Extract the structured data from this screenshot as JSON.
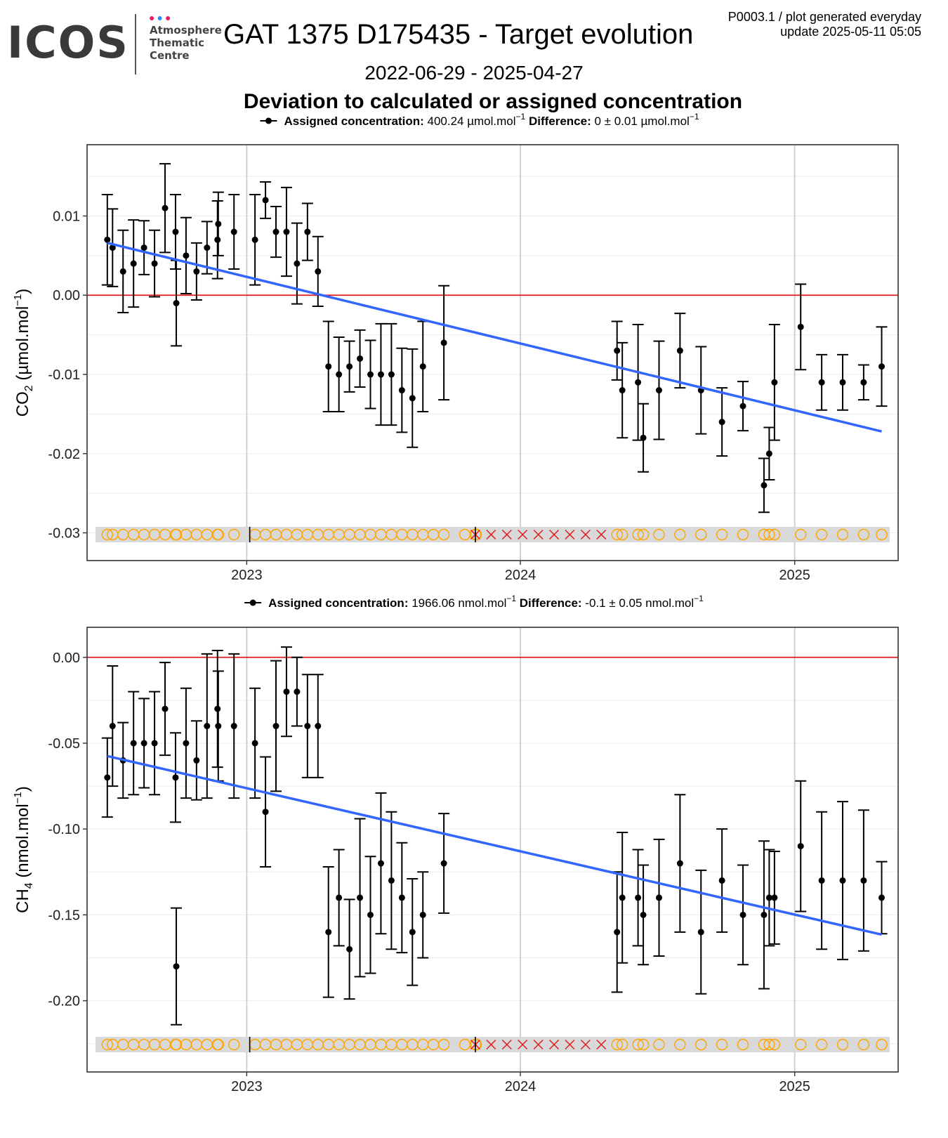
{
  "logo": {
    "text": "ICOS",
    "dots": [
      "#e91e63",
      "#2196f3",
      "#e91e63"
    ],
    "sub": [
      "Atmosphere",
      "Thematic",
      "Centre"
    ]
  },
  "header": {
    "title": "GAT 1375 D175435 - Target evolution",
    "meta_line1": "P0003.1 / plot generated everyday",
    "meta_line2": "update  2025-05-11 05:05",
    "date_range": "2022-06-29 - 2025-04-27",
    "subtitle": "Deviation to calculated or assigned concentration"
  },
  "colors": {
    "points": "#000000",
    "zero_line": "#e31a1c",
    "trend": "#3366ff",
    "flag_circle": "#ffa500",
    "flag_cross": "#e31a1c",
    "flag_band": "#d9d9d9",
    "grid": "#ebebeb",
    "year_grid": "#cccccc"
  },
  "chart_data": [
    {
      "type": "scatter",
      "panel": "co2",
      "legend": {
        "label1": "Assigned concentration:",
        "value1": "400.24 µmol.mol",
        "sup1": "−1",
        "label2": "Difference:",
        "value2": "0 ± 0.01 µmol.mol",
        "sup2": "−1"
      },
      "ylabel": {
        "pre": "CO",
        "sub": "2",
        "mid": " (µmol.mol",
        "sup": "−1",
        "post": ")"
      },
      "ylim": [
        -0.0335,
        0.019
      ],
      "yticks": [
        {
          "v": 0.01,
          "label": "0.01"
        },
        {
          "v": 0.0,
          "label": "0.00"
        },
        {
          "v": -0.01,
          "label": "-0.01"
        },
        {
          "v": -0.02,
          "label": "-0.02"
        },
        {
          "v": -0.03,
          "label": "-0.03"
        }
      ],
      "xticks": [
        "2023",
        "2024",
        "2025"
      ],
      "points": [
        {
          "x": "2022-06-29",
          "y": 0.007,
          "e": 0.0057
        },
        {
          "x": "2022-07-06",
          "y": 0.006,
          "e": 0.0049
        },
        {
          "x": "2022-07-20",
          "y": 0.003,
          "e": 0.0052
        },
        {
          "x": "2022-08-03",
          "y": 0.004,
          "e": 0.0055
        },
        {
          "x": "2022-08-17",
          "y": 0.006,
          "e": 0.0034
        },
        {
          "x": "2022-08-31",
          "y": 0.004,
          "e": 0.0042
        },
        {
          "x": "2022-09-14",
          "y": 0.011,
          "e": 0.0056
        },
        {
          "x": "2022-09-28",
          "y": 0.008,
          "e": 0.0047
        },
        {
          "x": "2022-09-29",
          "y": -0.001,
          "e": 0.0054
        },
        {
          "x": "2022-10-12",
          "y": 0.005,
          "e": 0.0048
        },
        {
          "x": "2022-10-26",
          "y": 0.003,
          "e": 0.0036
        },
        {
          "x": "2022-11-09",
          "y": 0.006,
          "e": 0.0033
        },
        {
          "x": "2022-11-23",
          "y": 0.007,
          "e": 0.0049
        },
        {
          "x": "2022-11-24",
          "y": 0.009,
          "e": 0.004
        },
        {
          "x": "2022-12-15",
          "y": 0.008,
          "e": 0.0047
        },
        {
          "x": "2023-01-12",
          "y": 0.007,
          "e": 0.0057
        },
        {
          "x": "2023-01-26",
          "y": 0.012,
          "e": 0.0023
        },
        {
          "x": "2023-02-09",
          "y": 0.008,
          "e": 0.0032
        },
        {
          "x": "2023-02-23",
          "y": 0.008,
          "e": 0.0056
        },
        {
          "x": "2023-03-09",
          "y": 0.004,
          "e": 0.0051
        },
        {
          "x": "2023-03-23",
          "y": 0.008,
          "e": 0.0036
        },
        {
          "x": "2023-04-06",
          "y": 0.003,
          "e": 0.0044
        },
        {
          "x": "2023-04-20",
          "y": -0.009,
          "e": 0.0057
        },
        {
          "x": "2023-05-04",
          "y": -0.01,
          "e": 0.0047
        },
        {
          "x": "2023-05-18",
          "y": -0.009,
          "e": 0.0032
        },
        {
          "x": "2023-06-01",
          "y": -0.008,
          "e": 0.0036
        },
        {
          "x": "2023-06-15",
          "y": -0.01,
          "e": 0.0043
        },
        {
          "x": "2023-06-29",
          "y": -0.01,
          "e": 0.0064
        },
        {
          "x": "2023-07-13",
          "y": -0.01,
          "e": 0.0064
        },
        {
          "x": "2023-07-27",
          "y": -0.012,
          "e": 0.0053
        },
        {
          "x": "2023-08-10",
          "y": -0.013,
          "e": 0.0062
        },
        {
          "x": "2023-08-24",
          "y": -0.009,
          "e": 0.0057
        },
        {
          "x": "2023-09-21",
          "y": -0.006,
          "e": 0.0072
        },
        {
          "x": "2024-05-09",
          "y": -0.007,
          "e": 0.0037
        },
        {
          "x": "2024-05-16",
          "y": -0.012,
          "e": 0.006
        },
        {
          "x": "2024-06-06",
          "y": -0.011,
          "e": 0.0073
        },
        {
          "x": "2024-06-13",
          "y": -0.018,
          "e": 0.0043
        },
        {
          "x": "2024-07-04",
          "y": -0.012,
          "e": 0.0062
        },
        {
          "x": "2024-08-01",
          "y": -0.007,
          "e": 0.0047
        },
        {
          "x": "2024-08-29",
          "y": -0.012,
          "e": 0.0055
        },
        {
          "x": "2024-09-26",
          "y": -0.016,
          "e": 0.0043
        },
        {
          "x": "2024-10-24",
          "y": -0.014,
          "e": 0.0031
        },
        {
          "x": "2024-11-21",
          "y": -0.024,
          "e": 0.0034
        },
        {
          "x": "2024-11-28",
          "y": -0.02,
          "e": 0.0033
        },
        {
          "x": "2024-12-05",
          "y": -0.011,
          "e": 0.0073
        },
        {
          "x": "2025-01-09",
          "y": -0.004,
          "e": 0.0054
        },
        {
          "x": "2025-02-06",
          "y": -0.011,
          "e": 0.0035
        },
        {
          "x": "2025-03-06",
          "y": -0.011,
          "e": 0.0035
        },
        {
          "x": "2025-04-03",
          "y": -0.011,
          "e": 0.0022
        },
        {
          "x": "2025-04-27",
          "y": -0.009,
          "e": 0.005
        }
      ],
      "trend": [
        {
          "x": "2022-06-29",
          "y": 0.0066
        },
        {
          "x": "2025-04-27",
          "y": -0.0172
        }
      ]
    },
    {
      "type": "scatter",
      "panel": "ch4",
      "legend": {
        "label1": "Assigned concentration:",
        "value1": "1966.06 nmol.mol",
        "sup1": "−1",
        "label2": "Difference:",
        "value2": "-0.1 ± 0.05 nmol.mol",
        "sup2": "−1"
      },
      "ylabel": {
        "pre": "CH",
        "sub": "4",
        "mid": " (nmol.mol",
        "sup": "−1",
        "post": ")"
      },
      "ylim": [
        -0.2415,
        0.0175
      ],
      "yticks": [
        {
          "v": 0.0,
          "label": "0.00"
        },
        {
          "v": -0.05,
          "label": "-0.05"
        },
        {
          "v": -0.1,
          "label": "-0.10"
        },
        {
          "v": -0.15,
          "label": "-0.15"
        },
        {
          "v": -0.2,
          "label": "-0.20"
        }
      ],
      "xticks": [
        "2023",
        "2024",
        "2025"
      ],
      "points": [
        {
          "x": "2022-06-29",
          "y": -0.07,
          "e": 0.023
        },
        {
          "x": "2022-07-06",
          "y": -0.04,
          "e": 0.035
        },
        {
          "x": "2022-07-20",
          "y": -0.06,
          "e": 0.022
        },
        {
          "x": "2022-08-03",
          "y": -0.05,
          "e": 0.03
        },
        {
          "x": "2022-08-17",
          "y": -0.05,
          "e": 0.026
        },
        {
          "x": "2022-08-31",
          "y": -0.05,
          "e": 0.03
        },
        {
          "x": "2022-09-14",
          "y": -0.03,
          "e": 0.027
        },
        {
          "x": "2022-09-28",
          "y": -0.07,
          "e": 0.026
        },
        {
          "x": "2022-09-29",
          "y": -0.18,
          "e": 0.034
        },
        {
          "x": "2022-10-12",
          "y": -0.05,
          "e": 0.032
        },
        {
          "x": "2022-10-26",
          "y": -0.06,
          "e": 0.023
        },
        {
          "x": "2022-11-09",
          "y": -0.04,
          "e": 0.042
        },
        {
          "x": "2022-11-23",
          "y": -0.03,
          "e": 0.034
        },
        {
          "x": "2022-11-24",
          "y": -0.04,
          "e": 0.032
        },
        {
          "x": "2022-12-15",
          "y": -0.04,
          "e": 0.042
        },
        {
          "x": "2023-01-12",
          "y": -0.05,
          "e": 0.032
        },
        {
          "x": "2023-01-26",
          "y": -0.09,
          "e": 0.032
        },
        {
          "x": "2023-02-09",
          "y": -0.04,
          "e": 0.038
        },
        {
          "x": "2023-02-23",
          "y": -0.02,
          "e": 0.026
        },
        {
          "x": "2023-03-09",
          "y": -0.02,
          "e": 0.02
        },
        {
          "x": "2023-03-23",
          "y": -0.04,
          "e": 0.03
        },
        {
          "x": "2023-04-06",
          "y": -0.04,
          "e": 0.03
        },
        {
          "x": "2023-04-20",
          "y": -0.16,
          "e": 0.038
        },
        {
          "x": "2023-05-04",
          "y": -0.14,
          "e": 0.028
        },
        {
          "x": "2023-05-18",
          "y": -0.17,
          "e": 0.029
        },
        {
          "x": "2023-06-01",
          "y": -0.14,
          "e": 0.046
        },
        {
          "x": "2023-06-15",
          "y": -0.15,
          "e": 0.034
        },
        {
          "x": "2023-06-29",
          "y": -0.12,
          "e": 0.041
        },
        {
          "x": "2023-07-13",
          "y": -0.13,
          "e": 0.04
        },
        {
          "x": "2023-07-27",
          "y": -0.14,
          "e": 0.032
        },
        {
          "x": "2023-08-10",
          "y": -0.16,
          "e": 0.031
        },
        {
          "x": "2023-08-24",
          "y": -0.15,
          "e": 0.025
        },
        {
          "x": "2023-09-21",
          "y": -0.12,
          "e": 0.029
        },
        {
          "x": "2024-05-09",
          "y": -0.16,
          "e": 0.035
        },
        {
          "x": "2024-05-16",
          "y": -0.14,
          "e": 0.038
        },
        {
          "x": "2024-06-06",
          "y": -0.14,
          "e": 0.028
        },
        {
          "x": "2024-06-13",
          "y": -0.15,
          "e": 0.029
        },
        {
          "x": "2024-07-04",
          "y": -0.14,
          "e": 0.034
        },
        {
          "x": "2024-08-01",
          "y": -0.12,
          "e": 0.04
        },
        {
          "x": "2024-08-29",
          "y": -0.16,
          "e": 0.036
        },
        {
          "x": "2024-09-26",
          "y": -0.13,
          "e": 0.03
        },
        {
          "x": "2024-10-24",
          "y": -0.15,
          "e": 0.029
        },
        {
          "x": "2024-11-21",
          "y": -0.15,
          "e": 0.043
        },
        {
          "x": "2024-11-28",
          "y": -0.14,
          "e": 0.028
        },
        {
          "x": "2024-12-05",
          "y": -0.14,
          "e": 0.027
        },
        {
          "x": "2025-01-09",
          "y": -0.11,
          "e": 0.038
        },
        {
          "x": "2025-02-06",
          "y": -0.13,
          "e": 0.04
        },
        {
          "x": "2025-03-06",
          "y": -0.13,
          "e": 0.046
        },
        {
          "x": "2025-04-03",
          "y": -0.13,
          "e": 0.041
        },
        {
          "x": "2025-04-27",
          "y": -0.14,
          "e": 0.021
        }
      ],
      "trend": [
        {
          "x": "2022-06-29",
          "y": -0.0575
        },
        {
          "x": "2025-04-27",
          "y": -0.1615
        }
      ]
    }
  ],
  "flag_rug": {
    "circles": [
      "2022-06-29",
      "2022-07-06",
      "2022-07-20",
      "2022-08-03",
      "2022-08-17",
      "2022-08-31",
      "2022-09-14",
      "2022-09-28",
      "2022-09-29",
      "2022-10-12",
      "2022-10-26",
      "2022-11-09",
      "2022-11-23",
      "2022-11-24",
      "2022-12-15",
      "2023-01-12",
      "2023-01-26",
      "2023-02-09",
      "2023-02-23",
      "2023-03-09",
      "2023-03-23",
      "2023-04-06",
      "2023-04-20",
      "2023-05-04",
      "2023-05-18",
      "2023-06-01",
      "2023-06-15",
      "2023-06-29",
      "2023-07-13",
      "2023-07-27",
      "2023-08-10",
      "2023-08-24",
      "2023-09-07",
      "2023-09-21",
      "2023-10-19",
      "2023-11-02",
      "2023-11-03",
      "2024-05-09",
      "2024-05-16",
      "2024-06-06",
      "2024-06-13",
      "2024-07-04",
      "2024-08-01",
      "2024-08-29",
      "2024-09-26",
      "2024-10-24",
      "2024-11-21",
      "2024-11-28",
      "2024-12-05",
      "2025-01-09",
      "2025-02-06",
      "2025-03-06",
      "2025-04-03",
      "2025-04-27"
    ],
    "crosses": [
      "2023-11-02",
      "2023-11-23",
      "2023-12-14",
      "2024-01-04",
      "2024-01-25",
      "2024-02-15",
      "2024-03-07",
      "2024-03-28",
      "2024-04-18"
    ],
    "ticks": [
      "2023-01-05",
      "2023-11-02"
    ]
  }
}
